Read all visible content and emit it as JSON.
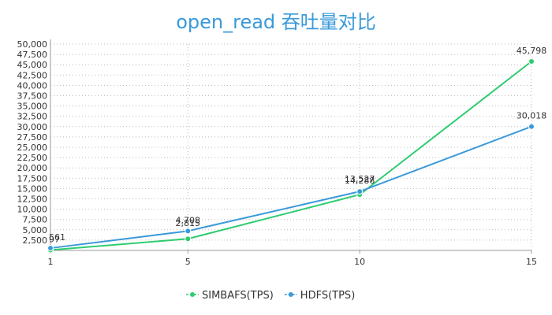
{
  "chart_data": {
    "type": "line",
    "title": "open_read 吞吐量对比",
    "x": [
      1,
      5,
      10,
      15
    ],
    "x_tick_labels": [
      "1",
      "5",
      "10",
      "15"
    ],
    "ylim": [
      0,
      50000
    ],
    "y_tick_labels": [
      "2,500",
      "5,000",
      "7,500",
      "10,000",
      "12,500",
      "15,000",
      "17,500",
      "20,000",
      "22,500",
      "25,000",
      "27,500",
      "30,000",
      "32,500",
      "35,000",
      "37,500",
      "40,000",
      "42,500",
      "45,000",
      "47,500",
      "50,000"
    ],
    "grid": true,
    "legend_position": "bottom",
    "series": [
      {
        "name": "SIMBAFS(TPS)",
        "color": "#2ecc71",
        "values": [
          97,
          2815,
          13527,
          45798
        ],
        "labels": [
          "97",
          "2,815",
          "13,527",
          "45,798"
        ]
      },
      {
        "name": "HDFS(TPS)",
        "color": "#3a9ad9",
        "values": [
          561,
          4708,
          14288,
          30018
        ],
        "labels": [
          "561",
          "4,708",
          "14,288",
          "30,018"
        ]
      }
    ]
  }
}
